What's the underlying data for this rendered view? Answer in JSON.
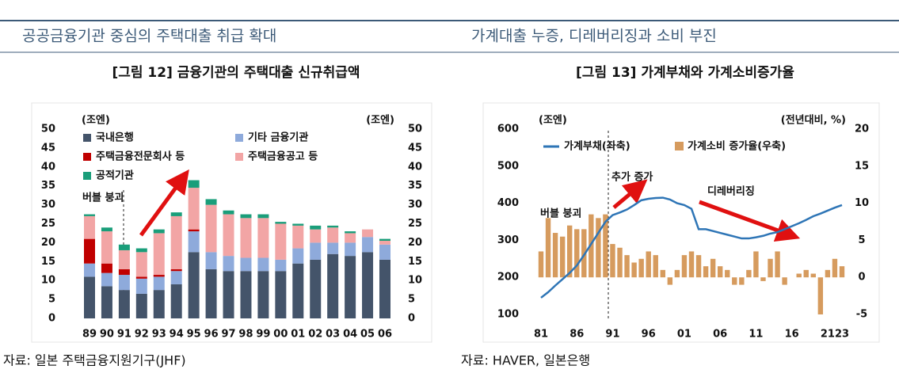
{
  "chart_data": [
    {
      "type": "bar",
      "stacked": true,
      "heading": "공공금융기관 중심의 주택대출 취급 확대",
      "title": "[그림 12] 금융기관의 주택대출 신규취급액",
      "source": "자료: 일본 주택금융지원기구(JHF)",
      "y_unit": "(조엔)",
      "y2_unit": "(조엔)",
      "annotations": [
        "버블 붕괴"
      ],
      "categories": [
        "89",
        "90",
        "91",
        "92",
        "93",
        "94",
        "95",
        "96",
        "97",
        "98",
        "99",
        "00",
        "01",
        "02",
        "03",
        "04",
        "05",
        "06"
      ],
      "series": [
        {
          "name": "국내은행",
          "color": "#44546a",
          "values": [
            11,
            8.5,
            7.5,
            6.5,
            7.5,
            9,
            17.5,
            13,
            12.5,
            12.5,
            12.5,
            12.5,
            14.5,
            15.5,
            17,
            16.5,
            17.5,
            15.5
          ]
        },
        {
          "name": "기타 금융기관",
          "color": "#8eaadb",
          "values": [
            3.5,
            3.5,
            4,
            4,
            3.5,
            3.5,
            5.5,
            4.5,
            4,
            3.5,
            3.5,
            3,
            4,
            4.5,
            3,
            3.5,
            4,
            4
          ]
        },
        {
          "name": "주택금융전문회사 등",
          "color": "#c00000",
          "values": [
            6.5,
            2.5,
            1.5,
            0.5,
            0.5,
            0.5,
            0.5,
            0,
            0,
            0,
            0,
            0,
            0,
            0,
            0,
            0,
            0,
            0
          ]
        },
        {
          "name": "주택금융공고 등",
          "color": "#f2a5a5",
          "values": [
            6,
            8.5,
            5,
            6.5,
            11,
            14,
            11,
            12.5,
            11,
            10.5,
            10.5,
            9.5,
            6,
            3.5,
            4,
            2.5,
            2,
            1
          ]
        },
        {
          "name": "공적기관",
          "color": "#1a9e7a",
          "values": [
            0.5,
            1,
            1.5,
            1,
            1,
            1,
            2,
            1.5,
            1,
            1,
            1,
            0.5,
            0.5,
            1,
            0.5,
            0.5,
            0,
            0.5
          ]
        }
      ],
      "ylim": [
        0,
        50
      ],
      "yticks": [
        0,
        5,
        10,
        15,
        20,
        25,
        30,
        35,
        40,
        45,
        50
      ],
      "y2lim": [
        0,
        50
      ],
      "y2ticks": [
        0,
        5,
        10,
        15,
        20,
        25,
        30,
        35,
        40,
        45,
        50
      ]
    },
    {
      "type": "combo",
      "heading": "가계대출 누증, 디레버리징과 소비 부진",
      "title": "[그림 13] 가계부채와 가계소비증가율",
      "source": "자료: HAVER, 일본은행",
      "y_unit": "(조엔)",
      "y2_unit": "(전년대비, %)",
      "annotations": [
        "버블 붕괴",
        "추가 증가",
        "디레버리징"
      ],
      "categories": [
        "81",
        null,
        null,
        null,
        null,
        "86",
        null,
        null,
        null,
        null,
        "91",
        null,
        null,
        null,
        null,
        "96",
        null,
        null,
        null,
        null,
        "01",
        null,
        null,
        null,
        null,
        "06",
        null,
        null,
        null,
        null,
        "11",
        null,
        null,
        null,
        null,
        "16",
        null,
        null,
        null,
        null,
        "21",
        null,
        "23"
      ],
      "series": [
        {
          "name": "가계부채(좌축)",
          "color": "#2e75b6",
          "kind": "line",
          "values": [
            145,
            160,
            178,
            195,
            212,
            232,
            260,
            290,
            320,
            350,
            368,
            375,
            383,
            395,
            408,
            412,
            414,
            415,
            410,
            400,
            395,
            385,
            330,
            330,
            325,
            320,
            315,
            310,
            305,
            305,
            308,
            312,
            318,
            322,
            330,
            338,
            346,
            355,
            365,
            372,
            380,
            388,
            395
          ]
        },
        {
          "name": "가계소비 증가율(우축)",
          "color": "#d69b5e",
          "kind": "bar",
          "axis": "y2",
          "values": [
            3.5,
            8,
            6,
            5.5,
            7,
            6.5,
            6.5,
            8.5,
            8,
            8.5,
            4.5,
            4,
            3,
            2,
            2.5,
            3.5,
            3,
            1,
            -1,
            1,
            3,
            3.5,
            3,
            1.5,
            2.5,
            1.5,
            1,
            -1,
            -1,
            1,
            3.5,
            -0.5,
            2.5,
            3.5,
            -1,
            0,
            0.5,
            1,
            0.5,
            -5,
            1,
            2.5,
            1.5
          ]
        }
      ],
      "ylim": [
        100,
        600
      ],
      "yticks": [
        100,
        200,
        300,
        400,
        500,
        600
      ],
      "y2lim": [
        -5,
        20
      ],
      "y2ticks": [
        -5,
        0,
        5,
        10,
        15,
        20
      ]
    }
  ]
}
